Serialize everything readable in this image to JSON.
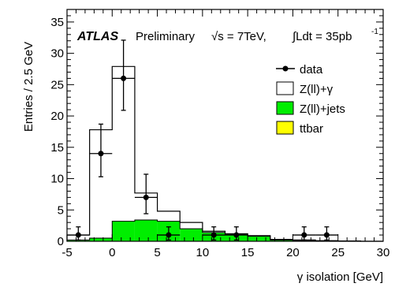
{
  "chart_data": {
    "type": "bar",
    "subtype": "stacked-histogram-with-data-points",
    "xlabel": "γ isolation [GeV]",
    "ylabel": "Entries / 2.5 GeV",
    "xlim": [
      -5,
      30
    ],
    "ylim": [
      0,
      37
    ],
    "x_ticks": [
      -5,
      0,
      5,
      10,
      15,
      20,
      25,
      30
    ],
    "y_ticks": [
      0,
      5,
      10,
      15,
      20,
      25,
      30,
      35
    ],
    "bin_width": 2.5,
    "bin_edges": [
      -5,
      -2.5,
      0,
      2.5,
      5,
      7.5,
      10,
      12.5,
      15,
      17.5,
      20,
      22.5,
      25,
      27.5,
      30
    ],
    "annotation": {
      "experiment": "ATLAS",
      "status": "Preliminary",
      "energy": "√s = 7TeV,",
      "luminosity": "∫Ldt = 35pb",
      "luminosity_exp": "-1"
    },
    "legend": {
      "placement": "top-right",
      "entries": [
        {
          "label": "data",
          "style": "marker",
          "color": "#000000"
        },
        {
          "label": "Z(ll)+γ",
          "style": "outline",
          "color": "#000000"
        },
        {
          "label": "Z(ll)+jets",
          "style": "fill",
          "color": "#00ee00"
        },
        {
          "label": "ttbar",
          "style": "fill",
          "color": "#ffff00"
        }
      ]
    },
    "series": [
      {
        "name": "Z(ll)+jets",
        "kind": "stacked-fill",
        "color": "#00ee00",
        "values": [
          0.2,
          0.5,
          3.2,
          3.4,
          3.2,
          2.0,
          1.4,
          1.1,
          0.8,
          0.2,
          0.1,
          0.0,
          0.0,
          0.0
        ]
      },
      {
        "name": "ttbar",
        "kind": "stacked-fill",
        "color": "#ffff00",
        "values": [
          0,
          0,
          0,
          0,
          0,
          0,
          0,
          0,
          0,
          0,
          0,
          0,
          0,
          0
        ]
      },
      {
        "name": "Z(ll)+γ",
        "kind": "stacked-outline",
        "color": "#000000",
        "total_values": [
          1.0,
          17.8,
          27.9,
          7.7,
          4.8,
          3.0,
          1.6,
          1.2,
          0.9,
          0.3,
          0.2,
          0.1,
          0.05,
          0.0
        ]
      },
      {
        "name": "data",
        "kind": "points",
        "color": "#000000",
        "points": [
          {
            "x": -3.75,
            "y": 1,
            "xerr": 1.25,
            "ylo": 0.2,
            "yhi": 2.3
          },
          {
            "x": -1.25,
            "y": 14,
            "xerr": 1.25,
            "ylo": 10.3,
            "yhi": 18.7
          },
          {
            "x": 1.25,
            "y": 26,
            "xerr": 1.25,
            "ylo": 20.9,
            "yhi": 32.1
          },
          {
            "x": 3.75,
            "y": 7,
            "xerr": 1.25,
            "ylo": 4.4,
            "yhi": 10.7
          },
          {
            "x": 6.25,
            "y": 1,
            "xerr": 1.25,
            "ylo": 0.2,
            "yhi": 2.3
          },
          {
            "x": 11.25,
            "y": 1,
            "xerr": 1.25,
            "ylo": 0.2,
            "yhi": 2.3
          },
          {
            "x": 13.75,
            "y": 1,
            "xerr": 1.25,
            "ylo": 0.2,
            "yhi": 2.3
          },
          {
            "x": 21.25,
            "y": 1,
            "xerr": 1.25,
            "ylo": 0.2,
            "yhi": 2.3
          },
          {
            "x": 23.75,
            "y": 1,
            "xerr": 1.25,
            "ylo": 0.2,
            "yhi": 2.3
          }
        ]
      }
    ]
  }
}
